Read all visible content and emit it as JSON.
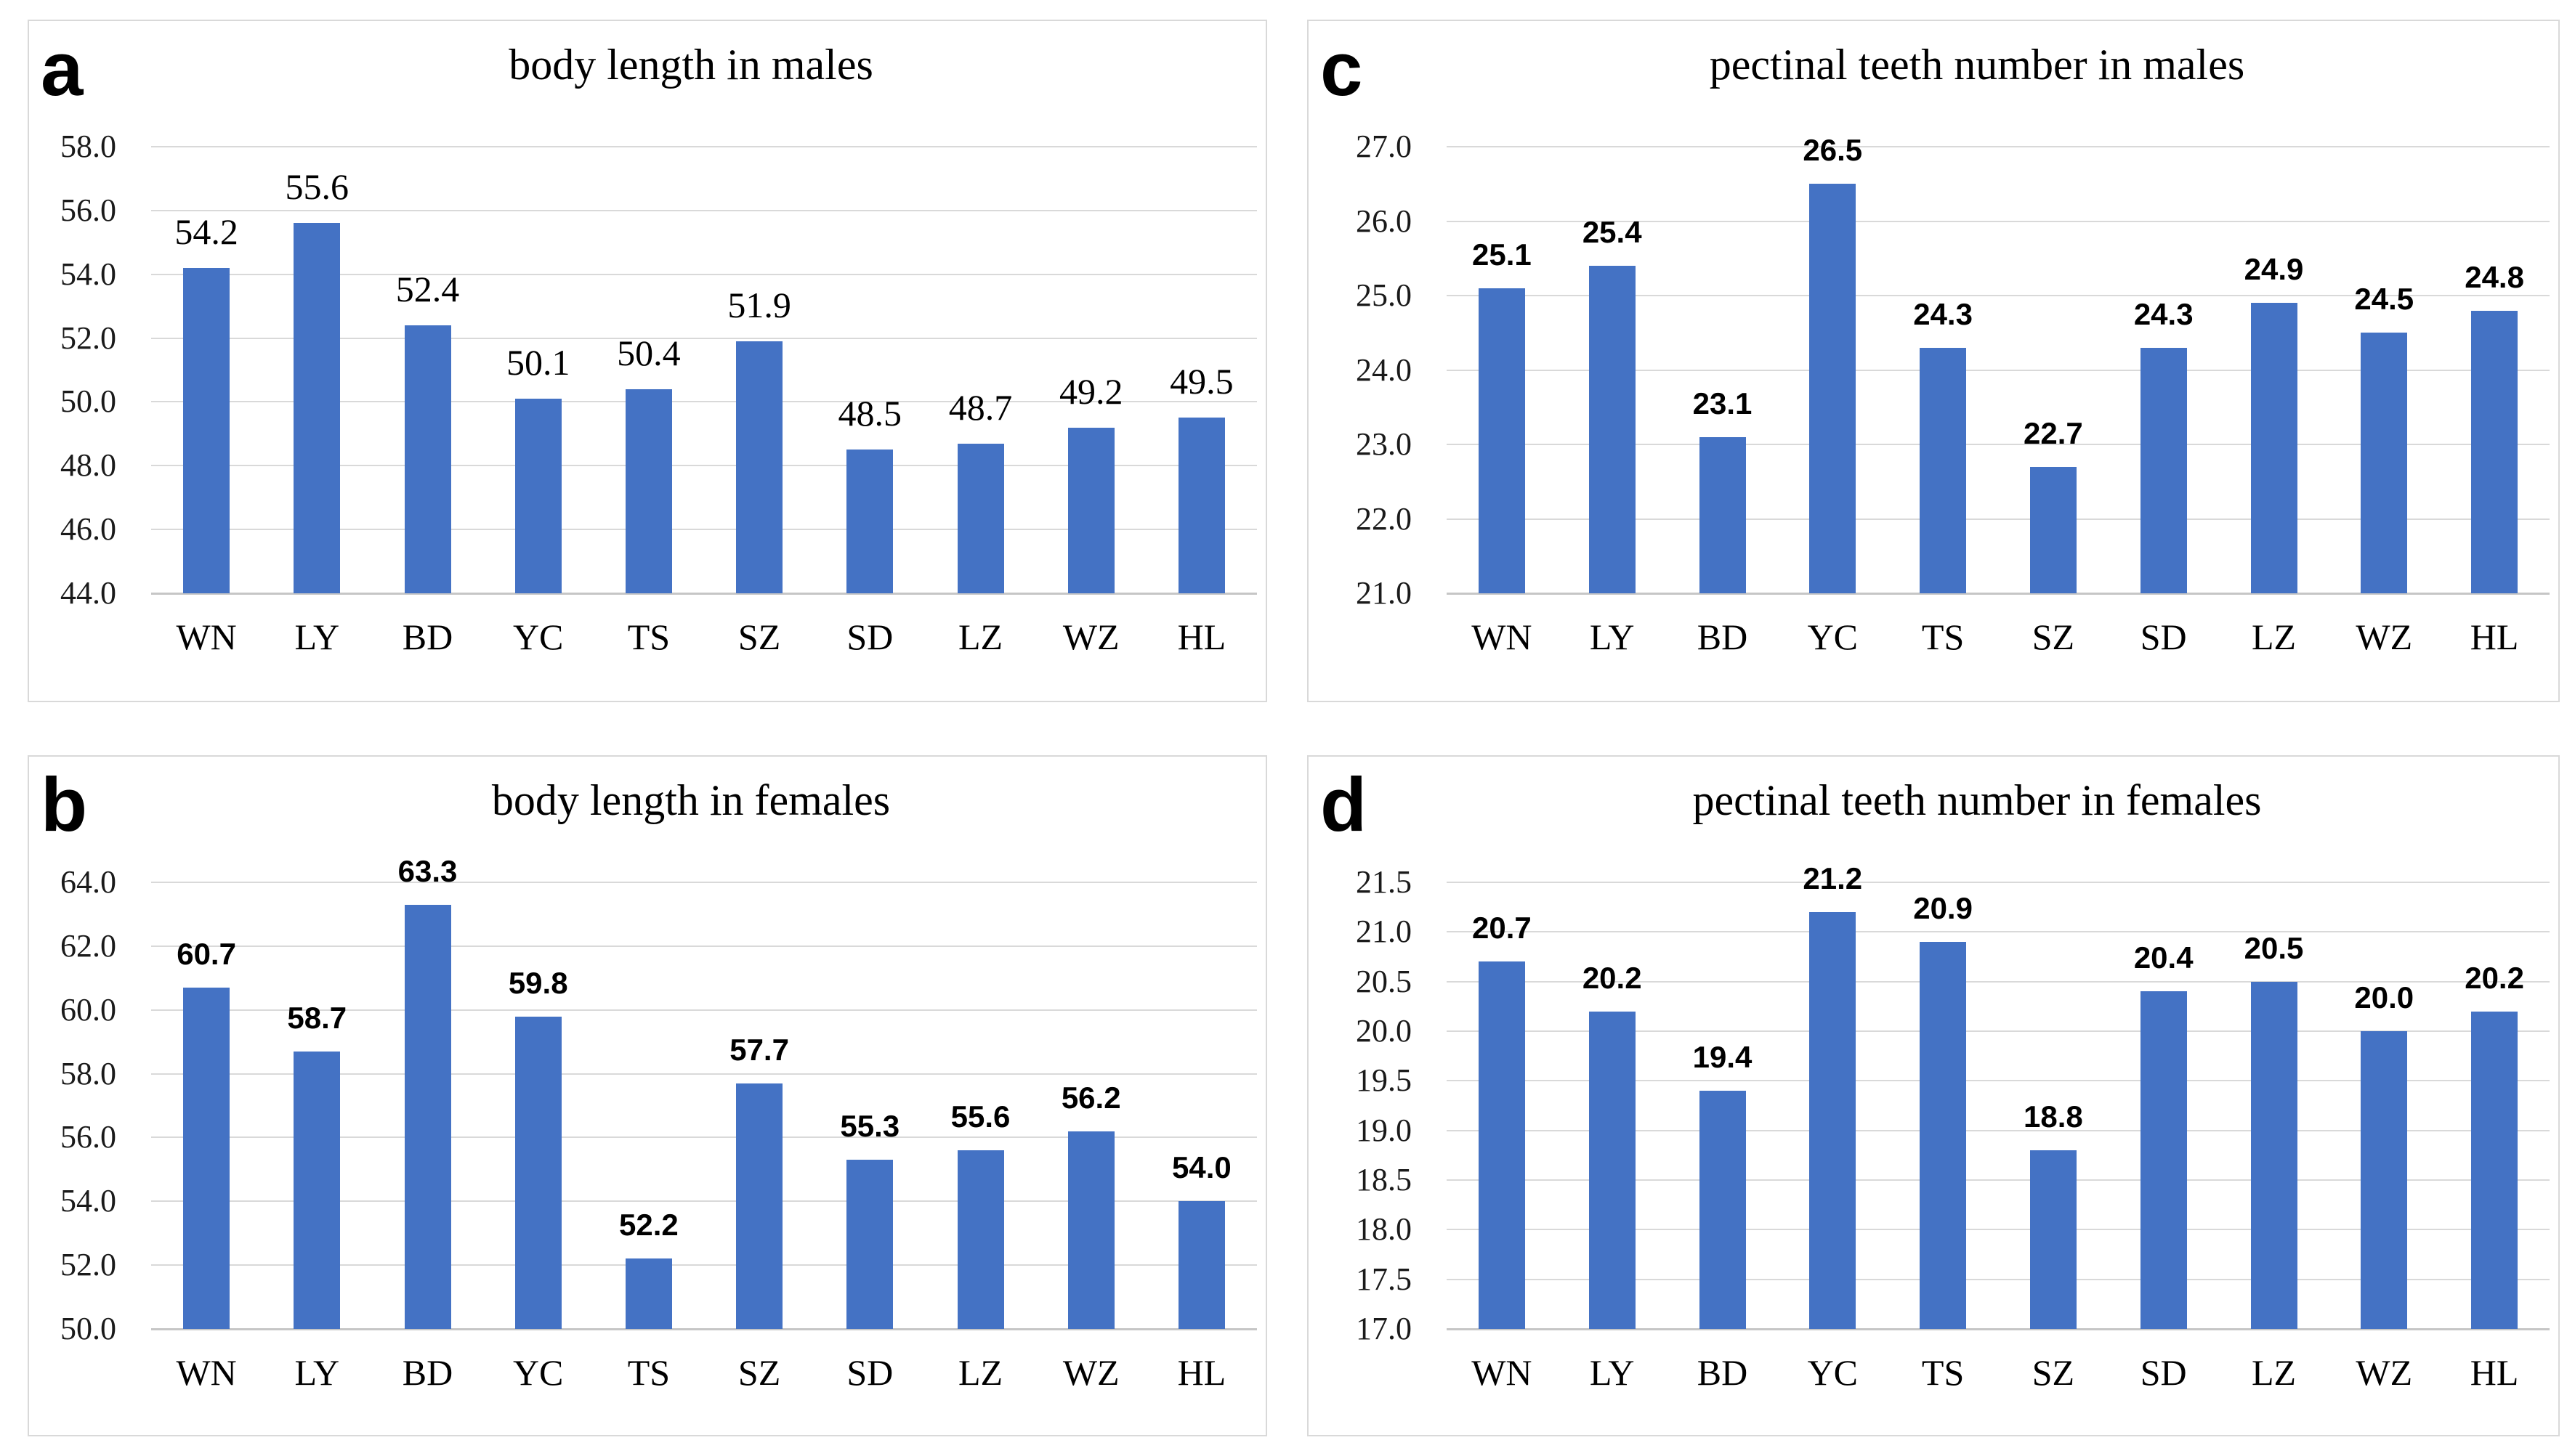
{
  "figure": {
    "background_color": "#ffffff",
    "panel_border_color": "#d9d9d9"
  },
  "style": {
    "bar_color": "#4472C4",
    "gridline_color": "#d9d9d9",
    "axis_line_color": "#c6c6c6",
    "tick_label_color": "#1a1a1a",
    "text_color": "#000000"
  },
  "chart_data": [
    {
      "type": "bar",
      "panel_letter": "a",
      "title": "body length in males",
      "categories": [
        "WN",
        "LY",
        "BD",
        "YC",
        "TS",
        "SZ",
        "SD",
        "LZ",
        "WZ",
        "HL"
      ],
      "values": [
        54.2,
        55.6,
        52.4,
        50.1,
        50.4,
        51.9,
        48.5,
        48.7,
        49.2,
        49.5
      ],
      "xlabel": "",
      "ylabel": "",
      "ylim": [
        44.0,
        58.0
      ],
      "ystep": 2.0,
      "tick_decimals": 1,
      "value_label_decimals": 1,
      "value_label_font": "serif",
      "grid": true,
      "legend": "none"
    },
    {
      "type": "bar",
      "panel_letter": "b",
      "title": "body length in females",
      "categories": [
        "WN",
        "LY",
        "BD",
        "YC",
        "TS",
        "SZ",
        "SD",
        "LZ",
        "WZ",
        "HL"
      ],
      "values": [
        60.7,
        58.7,
        63.3,
        59.8,
        52.2,
        57.7,
        55.3,
        55.6,
        56.2,
        54.0
      ],
      "xlabel": "",
      "ylabel": "",
      "ylim": [
        50.0,
        64.0
      ],
      "ystep": 2.0,
      "tick_decimals": 1,
      "value_label_decimals": 1,
      "value_label_font": "sans",
      "grid": true,
      "legend": "none"
    },
    {
      "type": "bar",
      "panel_letter": "c",
      "title": "pectinal teeth number in males",
      "categories": [
        "WN",
        "LY",
        "BD",
        "YC",
        "TS",
        "SZ",
        "SD",
        "LZ",
        "WZ",
        "HL"
      ],
      "values": [
        25.1,
        25.4,
        23.1,
        26.5,
        24.3,
        22.7,
        24.3,
        24.9,
        24.5,
        24.8
      ],
      "xlabel": "",
      "ylabel": "",
      "ylim": [
        21.0,
        27.0
      ],
      "ystep": 1.0,
      "tick_decimals": 1,
      "value_label_decimals": 1,
      "value_label_font": "sans",
      "grid": true,
      "legend": "none"
    },
    {
      "type": "bar",
      "panel_letter": "d",
      "title": "pectinal teeth number in females",
      "categories": [
        "WN",
        "LY",
        "BD",
        "YC",
        "TS",
        "SZ",
        "SD",
        "LZ",
        "WZ",
        "HL"
      ],
      "values": [
        20.7,
        20.2,
        19.4,
        21.2,
        20.9,
        18.8,
        20.4,
        20.5,
        20.0,
        20.2
      ],
      "xlabel": "",
      "ylabel": "",
      "ylim": [
        17.0,
        21.5
      ],
      "ystep": 0.5,
      "tick_decimals": 1,
      "value_label_decimals": 1,
      "value_label_font": "sans",
      "grid": true,
      "legend": "none"
    }
  ]
}
